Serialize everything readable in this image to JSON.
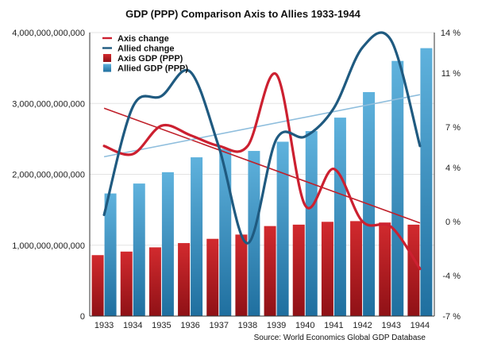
{
  "chart_data": {
    "type": "bar",
    "title": "GDP (PPP) Comparison Axis to Allies 1933-1944",
    "source": "Source: World Economics Global GDP Database",
    "categories": [
      "1933",
      "1934",
      "1935",
      "1936",
      "1937",
      "1938",
      "1939",
      "1940",
      "1941",
      "1942",
      "1943",
      "1944"
    ],
    "left_axis": {
      "ylim": [
        0,
        4000000000000
      ],
      "ticks": [
        0,
        1000000000000,
        2000000000000,
        3000000000000,
        4000000000000
      ],
      "tick_labels": [
        "0",
        "1,000,000,000,000",
        "2,000,000,000,000",
        "3,000,000,000,000",
        "4,000,000,000,000"
      ]
    },
    "right_axis": {
      "ylim": [
        -7,
        14
      ],
      "ticks": [
        -7,
        -4,
        0,
        4,
        7,
        11,
        14
      ],
      "tick_labels": [
        "-7 %",
        "-4 %",
        "0 %",
        "4 %",
        "7 %",
        "11 %",
        "14 %"
      ]
    },
    "series": [
      {
        "name": "Axis GDP (PPP)",
        "kind": "bar",
        "axis": "left",
        "color": "#b3191f",
        "values": [
          860000000000,
          910000000000,
          970000000000,
          1030000000000,
          1090000000000,
          1150000000000,
          1270000000000,
          1290000000000,
          1330000000000,
          1340000000000,
          1320000000000,
          1290000000000
        ]
      },
      {
        "name": "Allied GDP (PPP)",
        "kind": "bar",
        "axis": "left",
        "color": "#3b8fc0",
        "values": [
          1730000000000,
          1870000000000,
          2030000000000,
          2240000000000,
          2360000000000,
          2330000000000,
          2460000000000,
          2610000000000,
          2800000000000,
          3160000000000,
          3600000000000,
          3780000000000
        ]
      },
      {
        "name": "Axis change",
        "kind": "line",
        "axis": "right",
        "color": "#cc2030",
        "values": [
          5.6,
          5.0,
          7.1,
          6.4,
          5.6,
          5.6,
          10.9,
          1.2,
          3.9,
          0.0,
          -0.4,
          -3.5
        ]
      },
      {
        "name": "Allied change",
        "kind": "line",
        "axis": "right",
        "color": "#1f5a80",
        "values": [
          0.5,
          8.5,
          9.3,
          11.1,
          5.5,
          -1.6,
          6.1,
          6.3,
          8.4,
          12.9,
          13.4,
          5.6
        ]
      }
    ],
    "trendlines": [
      {
        "series": "Axis change",
        "color": "#c0202a",
        "start": 8.4,
        "end": -0.1
      },
      {
        "series": "Allied change",
        "color": "#8fbedd",
        "start": 4.8,
        "end": 9.4
      }
    ],
    "legend": "top-left",
    "grid": "horizontal"
  }
}
